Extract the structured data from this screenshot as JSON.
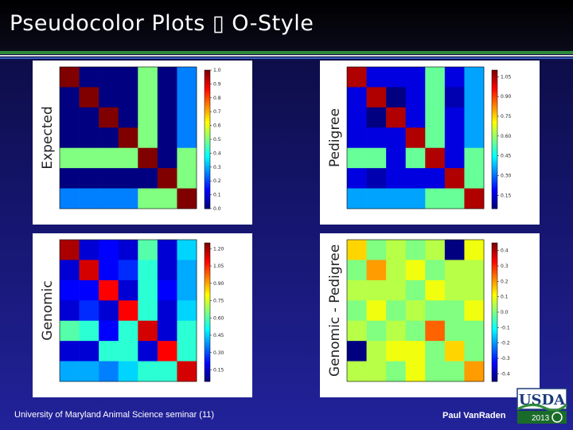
{
  "slide": {
    "title": "Pseudocolor Plots ▯ O-Style",
    "footer_left": "University of Maryland Animal Science seminar (11)",
    "footer_right": "Paul VanRaden",
    "logo_text": "USDA",
    "logo_year": "2013"
  },
  "colors": {
    "title_bar": "#000000",
    "accent_green": "#2e8b3a",
    "background_bottom": "#22229a"
  },
  "colormap": "jet",
  "chart_data": [
    {
      "type": "heatmap",
      "ylabel": "Expected",
      "vmin": 0.0,
      "vmax": 1.0,
      "colorbar_ticks": [
        "1.0",
        "0.9",
        "0.8",
        "0.7",
        "0.6",
        "0.5",
        "0.4",
        "0.3",
        "0.2",
        "0.1",
        "0.0"
      ],
      "matrix": [
        [
          1.0,
          0.0,
          0.0,
          0.0,
          0.5,
          0.0,
          0.25
        ],
        [
          0.0,
          1.0,
          0.0,
          0.0,
          0.5,
          0.0,
          0.25
        ],
        [
          0.0,
          0.0,
          1.0,
          0.0,
          0.5,
          0.0,
          0.25
        ],
        [
          0.0,
          0.0,
          0.0,
          1.0,
          0.5,
          0.0,
          0.25
        ],
        [
          0.5,
          0.5,
          0.5,
          0.5,
          1.0,
          0.0,
          0.5
        ],
        [
          0.0,
          0.0,
          0.0,
          0.0,
          0.0,
          1.0,
          0.5
        ],
        [
          0.25,
          0.25,
          0.25,
          0.25,
          0.5,
          0.5,
          1.0
        ]
      ]
    },
    {
      "type": "heatmap",
      "ylabel": "Pedigree",
      "vmin": 0.05,
      "vmax": 1.1,
      "colorbar_ticks": [
        "1.05",
        "0.90",
        "0.75",
        "0.60",
        "0.45",
        "0.30",
        "0.15"
      ],
      "matrix": [
        [
          1.05,
          0.15,
          0.15,
          0.15,
          0.55,
          0.15,
          0.35
        ],
        [
          0.15,
          1.05,
          0.05,
          0.15,
          0.55,
          0.1,
          0.35
        ],
        [
          0.15,
          0.05,
          1.05,
          0.15,
          0.55,
          0.15,
          0.35
        ],
        [
          0.15,
          0.15,
          0.15,
          1.05,
          0.55,
          0.15,
          0.35
        ],
        [
          0.55,
          0.55,
          0.15,
          0.55,
          1.05,
          0.15,
          0.55
        ],
        [
          0.15,
          0.1,
          0.15,
          0.15,
          0.15,
          1.05,
          0.55
        ],
        [
          0.35,
          0.35,
          0.35,
          0.35,
          0.55,
          0.55,
          1.05
        ]
      ]
    },
    {
      "type": "heatmap",
      "ylabel": "Genomic",
      "vmin": 0.05,
      "vmax": 1.25,
      "colorbar_ticks": [
        "1.20",
        "1.05",
        "0.90",
        "0.75",
        "0.60",
        "0.45",
        "0.30",
        "0.15"
      ],
      "matrix": [
        [
          1.2,
          0.15,
          0.2,
          0.15,
          0.6,
          0.15,
          0.45
        ],
        [
          0.15,
          1.15,
          0.2,
          0.25,
          0.55,
          0.15,
          0.4
        ],
        [
          0.2,
          0.2,
          1.1,
          0.15,
          0.55,
          0.2,
          0.4
        ],
        [
          0.15,
          0.25,
          0.15,
          1.1,
          0.55,
          0.15,
          0.45
        ],
        [
          0.6,
          0.55,
          0.2,
          0.55,
          1.15,
          0.15,
          0.55
        ],
        [
          0.15,
          0.15,
          0.55,
          0.55,
          0.15,
          1.1,
          0.55
        ],
        [
          0.4,
          0.4,
          0.35,
          0.45,
          0.55,
          0.55,
          1.15
        ]
      ]
    },
    {
      "type": "heatmap",
      "ylabel": "Genomic - Pedigree",
      "vmin": -0.45,
      "vmax": 0.45,
      "colorbar_ticks": [
        "0.4",
        "0.3",
        "0.2",
        "0.1",
        "0.0",
        "-0.1",
        "-0.2",
        "-0.3",
        "-0.4"
      ],
      "matrix": [
        [
          0.15,
          0.0,
          0.05,
          0.0,
          0.05,
          -0.45,
          0.1
        ],
        [
          0.0,
          0.2,
          0.05,
          0.1,
          0.0,
          0.05,
          0.05
        ],
        [
          0.05,
          0.05,
          0.05,
          0.0,
          0.1,
          0.05,
          0.05
        ],
        [
          0.0,
          0.1,
          0.0,
          0.05,
          0.0,
          0.0,
          0.1
        ],
        [
          0.05,
          0.0,
          0.05,
          0.0,
          0.25,
          0.0,
          0.0
        ],
        [
          -0.45,
          0.05,
          0.1,
          0.1,
          0.0,
          0.15,
          0.0
        ],
        [
          0.05,
          0.05,
          0.0,
          0.1,
          0.0,
          0.0,
          0.2
        ]
      ]
    }
  ]
}
